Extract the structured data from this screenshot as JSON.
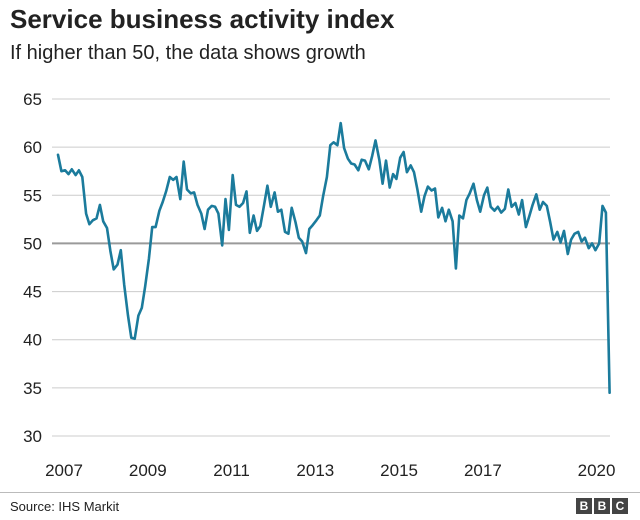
{
  "chart_data": {
    "type": "line",
    "title": "Service business activity index",
    "subtitle": "If higher than 50, the data shows growth",
    "xlabel": "",
    "ylabel": "",
    "ylim": [
      30,
      65
    ],
    "xlim": [
      2007.0,
      2020.25
    ],
    "yticks": [
      30,
      35,
      40,
      45,
      50,
      55,
      60,
      65
    ],
    "xticks": [
      "2007",
      "2009",
      "2011",
      "2013",
      "2015",
      "2017",
      "2020"
    ],
    "xtick_values": [
      2007,
      2009,
      2011,
      2013,
      2015,
      2017,
      2020
    ],
    "reference_line": 50,
    "grid": true,
    "line_color": "#1b7b9c",
    "series": [
      {
        "name": "",
        "x": [
          2007.0,
          2007.08,
          2007.17,
          2007.25,
          2007.33,
          2007.42,
          2007.5,
          2007.58,
          2007.67,
          2007.75,
          2007.83,
          2007.92,
          2008.0,
          2008.08,
          2008.17,
          2008.25,
          2008.33,
          2008.42,
          2008.5,
          2008.58,
          2008.67,
          2008.75,
          2008.83,
          2008.92,
          2009.0,
          2009.08,
          2009.17,
          2009.25,
          2009.33,
          2009.42,
          2009.5,
          2009.58,
          2009.67,
          2009.75,
          2009.83,
          2009.92,
          2010.0,
          2010.08,
          2010.17,
          2010.25,
          2010.33,
          2010.42,
          2010.5,
          2010.58,
          2010.67,
          2010.75,
          2010.83,
          2010.92,
          2011.0,
          2011.08,
          2011.17,
          2011.25,
          2011.33,
          2011.42,
          2011.5,
          2011.58,
          2011.67,
          2011.75,
          2011.83,
          2011.92,
          2012.0,
          2012.08,
          2012.17,
          2012.25,
          2012.33,
          2012.42,
          2012.5,
          2012.58,
          2012.67,
          2012.75,
          2012.83,
          2012.92,
          2013.0,
          2013.08,
          2013.17,
          2013.25,
          2013.33,
          2013.42,
          2013.5,
          2013.58,
          2013.67,
          2013.75,
          2013.83,
          2013.92,
          2014.0,
          2014.08,
          2014.17,
          2014.25,
          2014.33,
          2014.42,
          2014.5,
          2014.58,
          2014.67,
          2014.75,
          2014.83,
          2014.92,
          2015.0,
          2015.08,
          2015.17,
          2015.25,
          2015.33,
          2015.42,
          2015.5,
          2015.58,
          2015.67,
          2015.75,
          2015.83,
          2015.92,
          2016.0,
          2016.08,
          2016.17,
          2016.25,
          2016.33,
          2016.42,
          2016.5,
          2016.58,
          2016.67,
          2016.75,
          2016.83,
          2016.92,
          2017.0,
          2017.08,
          2017.17,
          2017.25,
          2017.33,
          2017.42,
          2017.5,
          2017.58,
          2017.67,
          2017.75,
          2017.83,
          2017.92,
          2018.0,
          2018.08,
          2018.17,
          2018.25,
          2018.33,
          2018.42,
          2018.5,
          2018.58,
          2018.67,
          2018.75,
          2018.83,
          2018.92,
          2019.0,
          2019.08,
          2019.17,
          2019.25,
          2019.33,
          2019.42,
          2019.5,
          2019.58,
          2019.67,
          2019.75,
          2019.83,
          2019.92,
          2020.0,
          2020.08,
          2020.17
        ],
        "values": [
          59.2,
          57.5,
          57.6,
          57.2,
          57.7,
          57.1,
          57.6,
          56.9,
          53.1,
          52.0,
          52.4,
          52.6,
          54.0,
          52.3,
          51.6,
          49.2,
          47.3,
          47.8,
          49.3,
          45.7,
          42.5,
          40.2,
          40.1,
          42.5,
          43.3,
          45.5,
          48.4,
          51.7,
          51.7,
          53.4,
          54.3,
          55.4,
          56.9,
          56.6,
          56.9,
          54.6,
          58.5,
          55.6,
          55.2,
          55.3,
          54.0,
          53.1,
          51.5,
          53.5,
          53.9,
          53.8,
          53.1,
          49.8,
          54.6,
          51.4,
          57.1,
          54.0,
          53.8,
          54.2,
          55.4,
          51.1,
          52.9,
          51.3,
          51.8,
          54.0,
          56.0,
          53.8,
          55.3,
          53.3,
          53.5,
          51.2,
          51.0,
          53.7,
          52.2,
          50.6,
          50.2,
          49.0,
          51.5,
          51.9,
          52.4,
          52.9,
          54.9,
          56.9,
          60.2,
          60.5,
          60.2,
          62.5,
          59.9,
          58.8,
          58.3,
          58.2,
          57.6,
          58.7,
          58.6,
          57.7,
          59.1,
          60.7,
          58.7,
          56.2,
          58.6,
          55.8,
          57.2,
          56.7,
          58.9,
          59.5,
          57.4,
          58.1,
          57.4,
          55.6,
          53.3,
          54.9,
          55.9,
          55.5,
          55.7,
          52.7,
          53.7,
          52.3,
          53.5,
          52.3,
          47.4,
          52.9,
          52.6,
          54.5,
          55.2,
          56.2,
          54.5,
          53.3,
          55.0,
          55.8,
          53.8,
          53.4,
          53.8,
          53.2,
          53.6,
          55.6,
          53.8,
          54.2,
          53.0,
          54.5,
          51.7,
          52.8,
          54.0,
          55.1,
          53.5,
          54.3,
          53.9,
          52.2,
          50.4,
          51.2,
          50.1,
          51.3,
          48.9,
          50.4,
          51.0,
          51.2,
          50.2,
          50.6,
          49.5,
          50.0,
          49.3,
          50.0,
          53.9,
          53.2,
          34.5
        ]
      }
    ]
  },
  "footer": {
    "source": "Source: IHS Markit",
    "logo_letters": [
      "B",
      "B",
      "C"
    ]
  }
}
